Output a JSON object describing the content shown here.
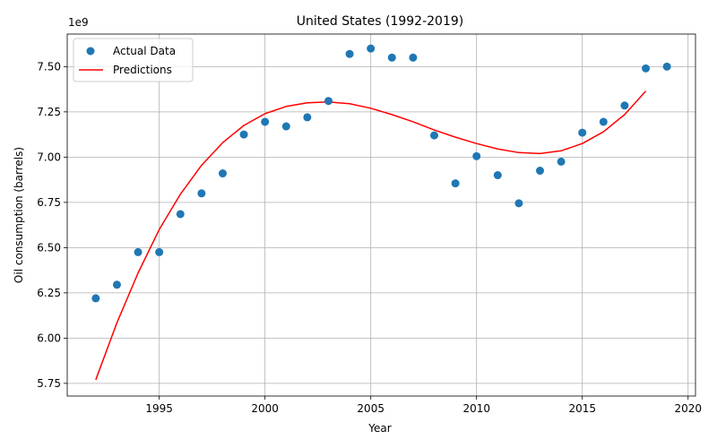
{
  "chart_data": {
    "type": "scatter",
    "title": "United States (1992-2019)",
    "xlabel": "Year",
    "ylabel": "Oil consumption (barrels)",
    "y_multiplier_label": "1e9",
    "xlim": [
      1990.65,
      2020.35
    ],
    "ylim": [
      5.68,
      7.68
    ],
    "x_ticks": [
      1995,
      2000,
      2005,
      2010,
      2015,
      2020
    ],
    "x_tick_labels": [
      "1995",
      "2000",
      "2005",
      "2010",
      "2015",
      "2020"
    ],
    "y_ticks": [
      5.75,
      6.0,
      6.25,
      6.5,
      6.75,
      7.0,
      7.25,
      7.5
    ],
    "y_tick_labels": [
      "5.75",
      "6.00",
      "6.25",
      "6.50",
      "6.75",
      "7.00",
      "7.25",
      "7.50"
    ],
    "grid": true,
    "legend_position": "upper-left",
    "series": [
      {
        "name": "Actual Data",
        "kind": "scatter",
        "color": "#1f77b4",
        "x": [
          1992,
          1993,
          1994,
          1995,
          1996,
          1997,
          1998,
          1999,
          2000,
          2001,
          2002,
          2003,
          2004,
          2005,
          2006,
          2007,
          2008,
          2009,
          2010,
          2011,
          2012,
          2013,
          2014,
          2015,
          2016,
          2017,
          2018,
          2019
        ],
        "y": [
          6.22,
          6.295,
          6.475,
          6.475,
          6.685,
          6.8,
          6.91,
          7.125,
          7.195,
          7.17,
          7.22,
          7.31,
          7.57,
          7.6,
          7.55,
          7.55,
          7.12,
          6.855,
          7.005,
          6.9,
          6.745,
          6.925,
          6.975,
          7.135,
          7.195,
          7.285,
          7.49,
          7.5
        ]
      },
      {
        "name": "Predictions",
        "kind": "line",
        "color": "#ff0000",
        "x": [
          1992,
          1993,
          1994,
          1995,
          1996,
          1997,
          1998,
          1999,
          2000,
          2001,
          2002,
          2003,
          2004,
          2005,
          2006,
          2007,
          2008,
          2009,
          2010,
          2011,
          2012,
          2013,
          2014,
          2015,
          2016,
          2017,
          2018
        ],
        "y": [
          5.77,
          6.085,
          6.36,
          6.6,
          6.795,
          6.955,
          7.08,
          7.175,
          7.24,
          7.28,
          7.3,
          7.305,
          7.295,
          7.27,
          7.235,
          7.195,
          7.15,
          7.11,
          7.075,
          7.045,
          7.025,
          7.02,
          7.035,
          7.075,
          7.14,
          7.235,
          7.365
        ]
      }
    ]
  }
}
